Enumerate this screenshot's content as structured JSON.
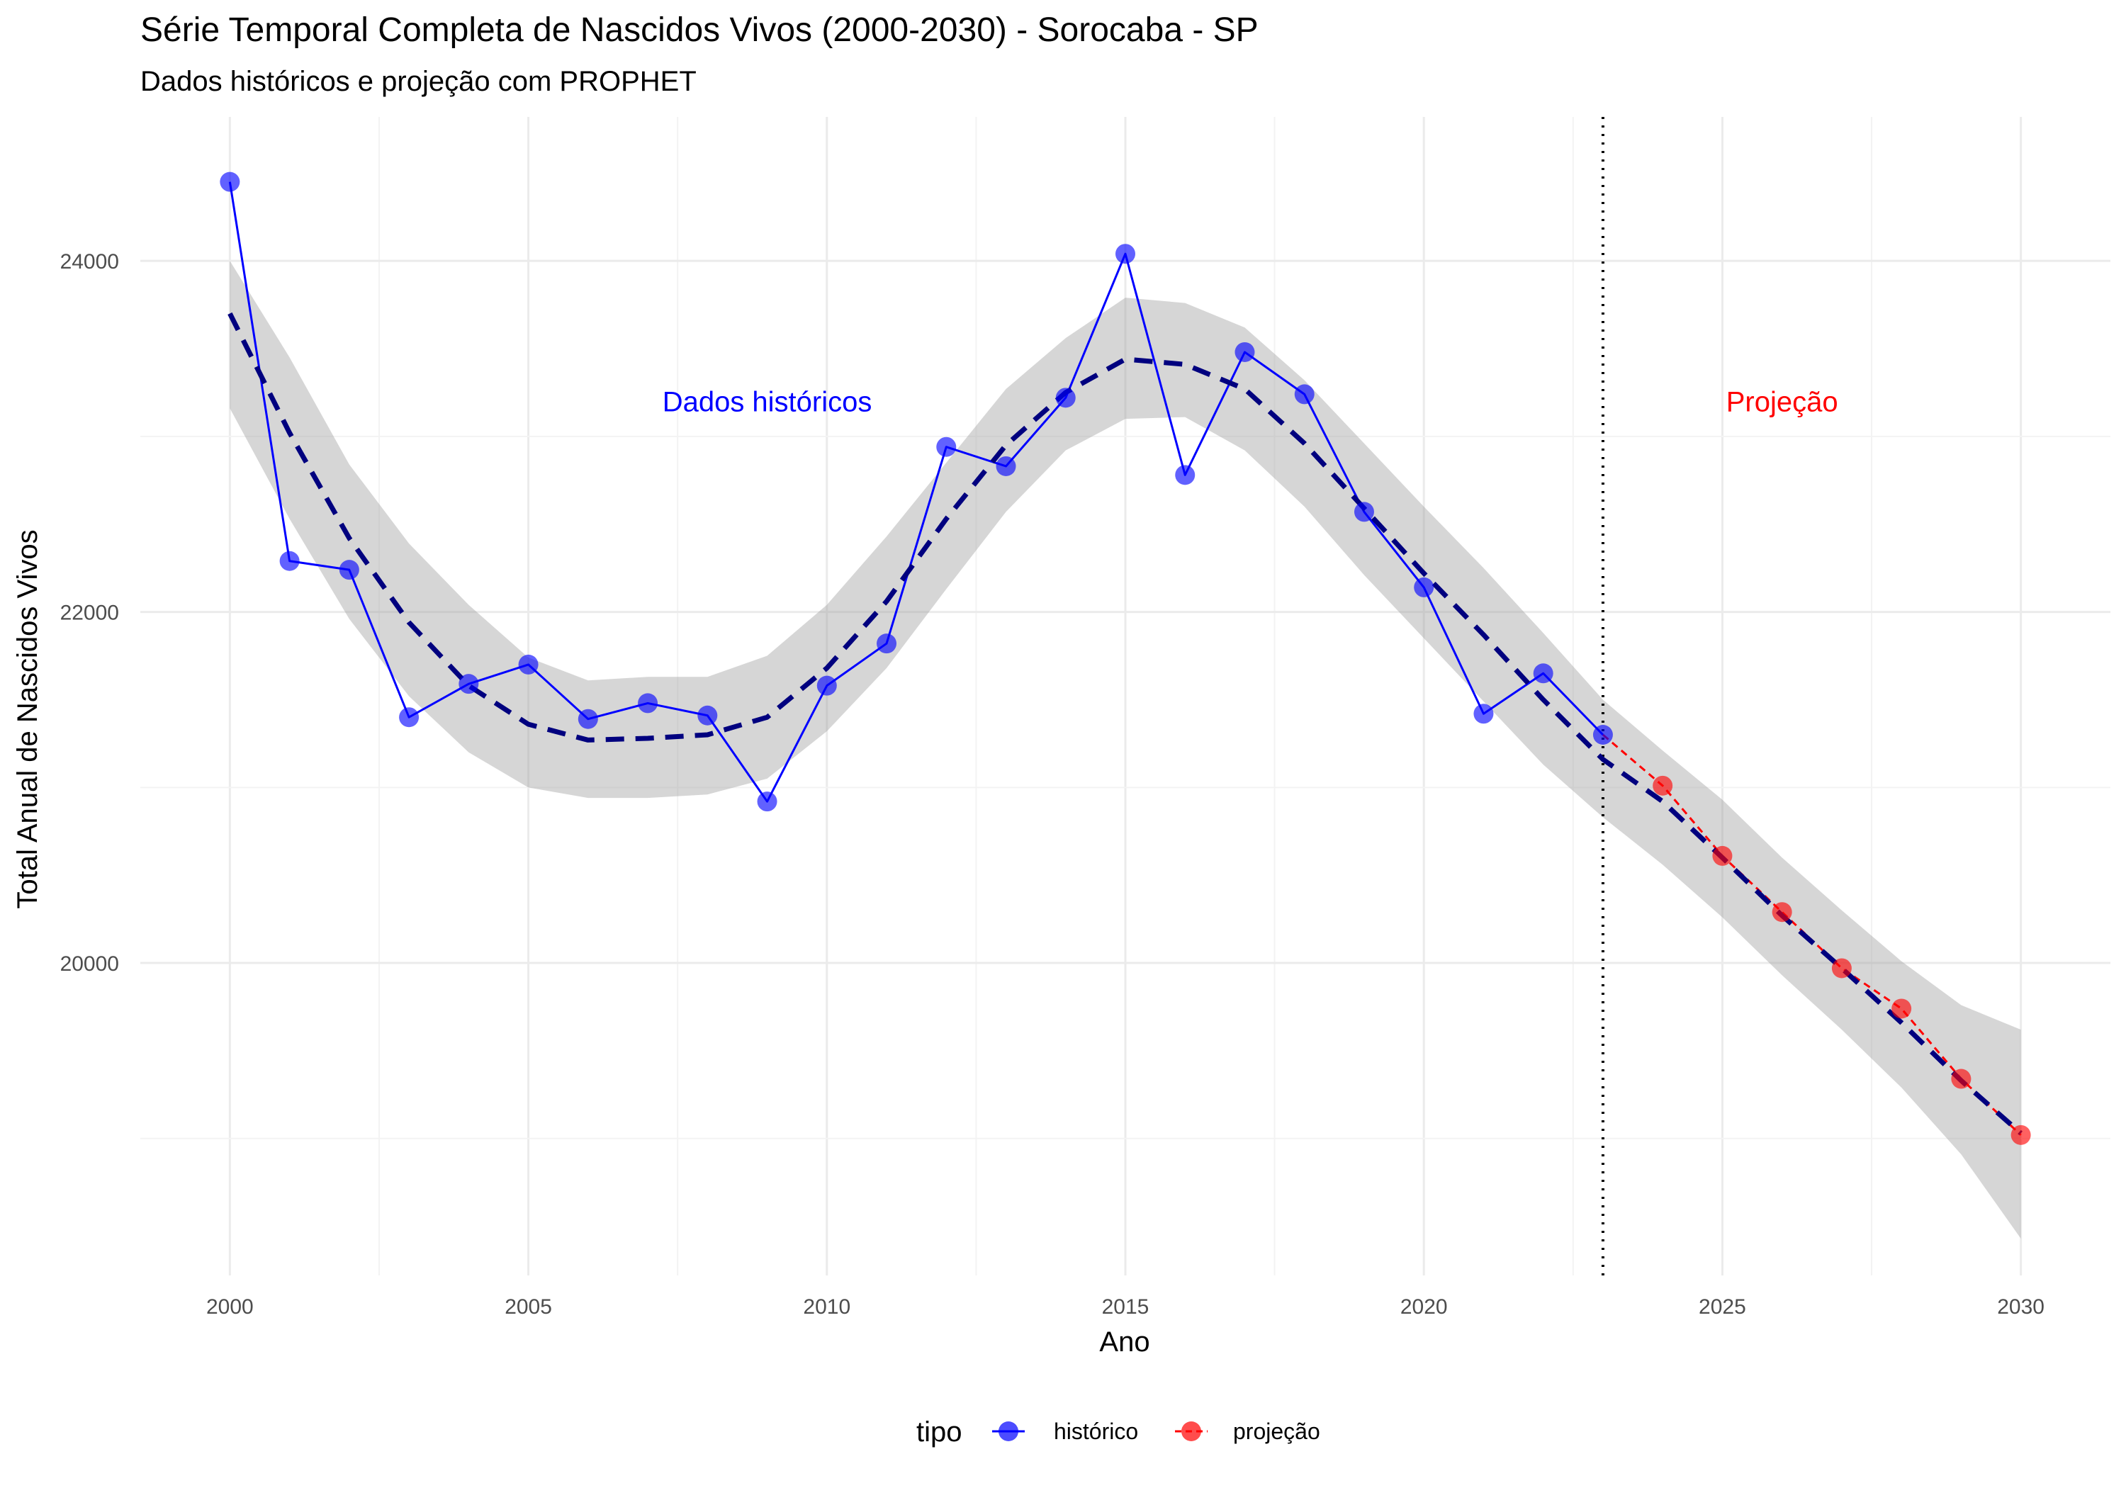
{
  "chart_data": {
    "type": "line",
    "title": "Série Temporal Completa de Nascidos Vivos (2000-2030) -  Sorocaba - SP",
    "subtitle": "Dados históricos e projeção com PROPHET",
    "xlabel": "Ano",
    "ylabel": "Total Anual de Nascidos Vivos",
    "xlim": [
      1998.5,
      2031.5
    ],
    "ylim": [
      18220,
      24820
    ],
    "x_ticks": [
      2000,
      2005,
      2010,
      2015,
      2020,
      2025,
      2030
    ],
    "x_tick_labels": [
      "2000",
      "2005",
      "2010",
      "2015",
      "2020",
      "2025",
      "2030"
    ],
    "y_ticks": [
      20000,
      22000,
      24000
    ],
    "y_tick_labels": [
      "20000",
      "22000",
      "24000"
    ],
    "grid": true,
    "legend": {
      "title": "tipo",
      "position": "bottom",
      "entries": [
        {
          "label": "histórico",
          "color": "#0000ff"
        },
        {
          "label": "projeção",
          "color": "#ff0000"
        }
      ]
    },
    "series": [
      {
        "name": "histórico",
        "color": "#0000ff",
        "x": [
          2000,
          2001,
          2002,
          2003,
          2004,
          2005,
          2006,
          2007,
          2008,
          2009,
          2010,
          2011,
          2012,
          2013,
          2014,
          2015,
          2016,
          2017,
          2018,
          2019,
          2020,
          2021,
          2022,
          2023
        ],
        "y": [
          24450,
          22290,
          22240,
          21400,
          21590,
          21700,
          21390,
          21480,
          21410,
          20920,
          21580,
          21820,
          22940,
          22830,
          23220,
          24040,
          22780,
          23480,
          23240,
          22570,
          22140,
          21420,
          21650,
          21300
        ]
      },
      {
        "name": "projeção",
        "color": "#ff0000",
        "x": [
          2023,
          2024,
          2025,
          2026,
          2027,
          2028,
          2029,
          2030
        ],
        "y": [
          21300,
          21010,
          20610,
          20290,
          19970,
          19740,
          19340,
          19020
        ]
      }
    ],
    "trend": {
      "color": "#00007f",
      "x": [
        2000,
        2001,
        2002,
        2003,
        2004,
        2005,
        2006,
        2007,
        2008,
        2009,
        2010,
        2011,
        2012,
        2013,
        2014,
        2015,
        2016,
        2017,
        2018,
        2019,
        2020,
        2021,
        2022,
        2023,
        2024,
        2025,
        2026,
        2027,
        2028,
        2029,
        2030
      ],
      "y": [
        23700,
        23020,
        22420,
        21940,
        21580,
        21360,
        21270,
        21280,
        21300,
        21400,
        21680,
        22060,
        22530,
        22950,
        23250,
        23440,
        23410,
        23270,
        22960,
        22590,
        22220,
        21870,
        21500,
        21160,
        20920,
        20600,
        20270,
        19970,
        19660,
        19330,
        19030
      ],
      "band_upper": [
        24000,
        23450,
        22840,
        22390,
        22040,
        21740,
        21610,
        21630,
        21630,
        21750,
        22040,
        22430,
        22850,
        23270,
        23560,
        23790,
        23760,
        23620,
        23320,
        22960,
        22600,
        22250,
        21880,
        21500,
        21210,
        20930,
        20600,
        20300,
        20010,
        19760,
        19620
      ],
      "band_lower": [
        23160,
        22530,
        21960,
        21520,
        21200,
        21000,
        20940,
        20940,
        20960,
        21050,
        21320,
        21680,
        22130,
        22570,
        22920,
        23100,
        23110,
        22920,
        22600,
        22210,
        21850,
        21490,
        21130,
        20830,
        20560,
        20260,
        19930,
        19620,
        19290,
        18910,
        18430
      ]
    },
    "vline": {
      "x": 2023,
      "color": "#000000"
    },
    "annotations": [
      {
        "text": "Dados históricos",
        "x": 2009,
        "y": 23200,
        "color": "#0000ff"
      },
      {
        "text": "Projeção",
        "x": 2026,
        "y": 23200,
        "color": "#ff0000"
      }
    ]
  }
}
